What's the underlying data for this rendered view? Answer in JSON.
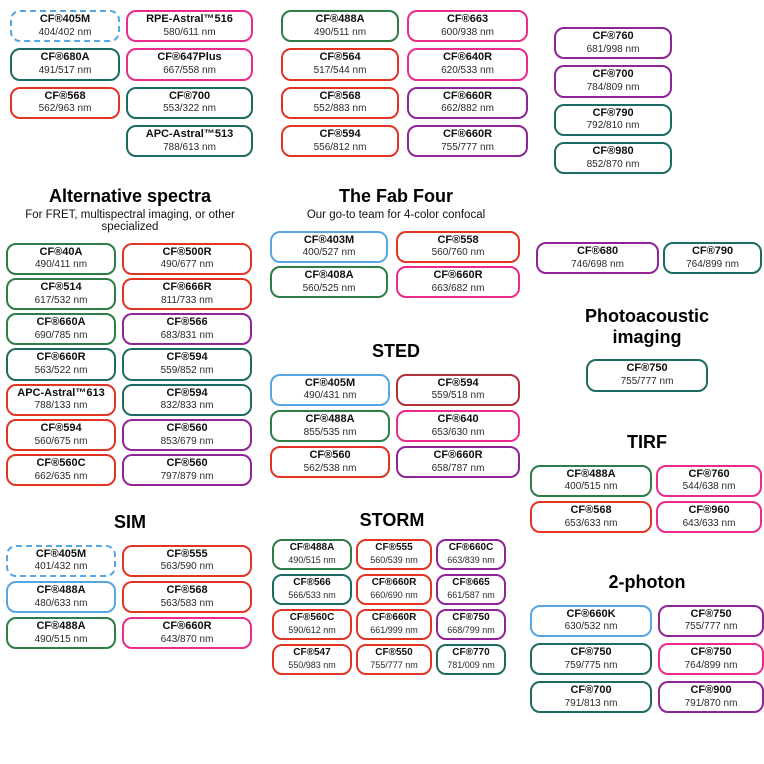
{
  "palette": {
    "blue": "#56a6e3",
    "teal": "#1d6b60",
    "green": "#2e7d46",
    "red": "#e23425",
    "pink": "#ea2b8b",
    "purple": "#8e2497",
    "darkred": "#ad3338"
  },
  "sections": [
    {
      "id": "top-a",
      "pills": [
        {
          "name": "CF®405M",
          "ex_em": "404/402 nm",
          "color": "blue",
          "border": "dashed"
        },
        {
          "name": "CF®680A",
          "ex_em": "491/517 nm",
          "color": "teal"
        },
        {
          "name": "CF®568",
          "ex_em": "562/963 nm",
          "color": "red"
        }
      ]
    },
    {
      "id": "top-b",
      "pills": [
        {
          "name": "RPE-Astral™516",
          "ex_em": "580/611 nm",
          "color": "pink"
        },
        {
          "name": "CF®647Plus",
          "ex_em": "667/558 nm",
          "color": "pink"
        },
        {
          "name": "CF®700",
          "ex_em": "553/322 nm",
          "color": "teal"
        },
        {
          "name": "APC-Astral™513",
          "ex_em": "788/613 nm",
          "color": "teal"
        }
      ]
    },
    {
      "id": "top-c",
      "pills": [
        {
          "name": "CF®488A",
          "ex_em": "490/511 nm",
          "color": "green"
        },
        {
          "name": "CF®564",
          "ex_em": "517/544 nm",
          "color": "red"
        },
        {
          "name": "CF®568",
          "ex_em": "552/883 nm",
          "color": "red"
        },
        {
          "name": "CF®594",
          "ex_em": "556/812 nm",
          "color": "red"
        }
      ]
    },
    {
      "id": "top-d",
      "pills": [
        {
          "name": "CF®663",
          "ex_em": "600/938 nm",
          "color": "pink"
        },
        {
          "name": "CF®640R",
          "ex_em": "620/533 nm",
          "color": "pink"
        },
        {
          "name": "CF®660R",
          "ex_em": "662/882 nm",
          "color": "purple"
        },
        {
          "name": "CF®660R",
          "ex_em": "755/777 nm",
          "color": "purple"
        }
      ]
    },
    {
      "id": "top-e",
      "pills": [
        {
          "name": "CF®760",
          "ex_em": "681/998 nm",
          "color": "purple"
        },
        {
          "name": "CF®700",
          "ex_em": "784/809 nm",
          "color": "purple"
        },
        {
          "name": "CF®790",
          "ex_em": "792/810 nm",
          "color": "teal"
        },
        {
          "name": "CF®980",
          "ex_em": "852/870 nm",
          "color": "teal"
        }
      ]
    },
    {
      "id": "alt",
      "title": "Alternative spectra",
      "subtitle": "For FRET, multispectral imaging, or other specialized",
      "pills": [
        {
          "name": "CF®40A",
          "ex_em": "490/411 nm",
          "color": "green"
        },
        {
          "name": "CF®500R",
          "ex_em": "490/677 nm",
          "color": "red"
        },
        {
          "name": "CF®514",
          "ex_em": "617/532 nm",
          "color": "green"
        },
        {
          "name": "CF®666R",
          "ex_em": "811/733 nm",
          "color": "red"
        },
        {
          "name": "CF®660A",
          "ex_em": "690/785 nm",
          "color": "green"
        },
        {
          "name": "CF®566",
          "ex_em": "683/831 nm",
          "color": "purple"
        },
        {
          "name": "CF®660R",
          "ex_em": "563/522 nm",
          "color": "teal"
        },
        {
          "name": "CF®594",
          "ex_em": "559/852 nm",
          "color": "teal"
        },
        {
          "name": "APC-Astral™613",
          "ex_em": "788/133 nm",
          "color": "red"
        },
        {
          "name": "CF®594",
          "ex_em": "832/833 nm",
          "color": "teal"
        },
        {
          "name": "CF®594",
          "ex_em": "560/675 nm",
          "color": "red"
        },
        {
          "name": "CF®560",
          "ex_em": "853/679 nm",
          "color": "purple"
        },
        {
          "name": "CF®560C",
          "ex_em": "662/635 nm",
          "color": "red"
        },
        {
          "name": "CF®560",
          "ex_em": "797/879 nm",
          "color": "purple"
        }
      ]
    },
    {
      "id": "fab",
      "title": "The Fab Four",
      "subtitle": "Our go-to team for 4-color confocal",
      "pills": [
        {
          "name": "CF®403M",
          "ex_em": "400/527 nm",
          "color": "blue"
        },
        {
          "name": "CF®558",
          "ex_em": "560/760 nm",
          "color": "red"
        },
        {
          "name": "CF®408A",
          "ex_em": "560/525 nm",
          "color": "green"
        },
        {
          "name": "CF®660R",
          "ex_em": "663/682 nm",
          "color": "pink"
        }
      ]
    },
    {
      "id": "sted",
      "title": "STED",
      "pills": [
        {
          "name": "CF®405M",
          "ex_em": "490/431 nm",
          "color": "blue"
        },
        {
          "name": "CF®594",
          "ex_em": "559/518 nm",
          "color": "darkred"
        },
        {
          "name": "CF®488A",
          "ex_em": "855/535 nm",
          "color": "green"
        },
        {
          "name": "CF®640",
          "ex_em": "653/630 nm",
          "color": "pink"
        },
        {
          "name": "CF®560",
          "ex_em": "562/538 nm",
          "color": "red"
        },
        {
          "name": "CF®660R",
          "ex_em": "658/787 nm",
          "color": "purple"
        }
      ]
    },
    {
      "id": "pair",
      "pills": [
        {
          "name": "CF®680",
          "ex_em": "746/698 nm",
          "color": "purple"
        },
        {
          "name": "CF®790",
          "ex_em": "764/899 nm",
          "color": "teal"
        }
      ]
    },
    {
      "id": "photo",
      "title_lines": [
        "Photoacoustic",
        "imaging"
      ],
      "pills": [
        {
          "name": "CF®750",
          "ex_em": "755/777 nm",
          "color": "teal"
        }
      ]
    },
    {
      "id": "tirf",
      "title": "TIRF",
      "pills": [
        {
          "name": "CF®488A",
          "ex_em": "400/515 nm",
          "color": "green"
        },
        {
          "name": "CF®760",
          "ex_em": "544/638 nm",
          "color": "pink"
        },
        {
          "name": "CF®568",
          "ex_em": "653/633 nm",
          "color": "red"
        },
        {
          "name": "CF®960",
          "ex_em": "643/633 nm",
          "color": "pink"
        }
      ]
    },
    {
      "id": "sim",
      "title": "SIM",
      "pills": [
        {
          "name": "CF®405M",
          "ex_em": "401/432 nm",
          "color": "blue",
          "border": "dashed"
        },
        {
          "name": "CF®555",
          "ex_em": "563/590 nm",
          "color": "red"
        },
        {
          "name": "CF®488A",
          "ex_em": "480/633 nm",
          "color": "blue"
        },
        {
          "name": "CF®568",
          "ex_em": "563/583 nm",
          "color": "red"
        },
        {
          "name": "CF®488A",
          "ex_em": "490/515 nm",
          "color": "green"
        },
        {
          "name": "CF®660R",
          "ex_em": "643/870 nm",
          "color": "pink"
        }
      ]
    },
    {
      "id": "storm",
      "title": "STORM",
      "pills": [
        {
          "name": "CF®488A",
          "ex_em": "490/515 nm",
          "color": "green"
        },
        {
          "name": "CF®555",
          "ex_em": "560/539 nm",
          "color": "red"
        },
        {
          "name": "CF®660C",
          "ex_em": "663/839 nm",
          "color": "purple"
        },
        {
          "name": "CF®566",
          "ex_em": "566/533 nm",
          "color": "teal"
        },
        {
          "name": "CF®660R",
          "ex_em": "660/690 nm",
          "color": "red"
        },
        {
          "name": "CF®665",
          "ex_em": "661/587 nm",
          "color": "purple"
        },
        {
          "name": "CF®560C",
          "ex_em": "590/612 nm",
          "color": "red"
        },
        {
          "name": "CF®660R",
          "ex_em": "661/999 nm",
          "color": "red"
        },
        {
          "name": "CF®750",
          "ex_em": "668/799 nm",
          "color": "purple"
        },
        {
          "name": "CF®547",
          "ex_em": "550/983 nm",
          "color": "red"
        },
        {
          "name": "CF®550",
          "ex_em": "755/777 nm",
          "color": "red"
        },
        {
          "name": "CF®770",
          "ex_em": "781/009 nm",
          "color": "teal"
        }
      ]
    },
    {
      "id": "twop",
      "title": "2-photon",
      "pills": [
        {
          "name": "CF®660K",
          "ex_em": "630/532 nm",
          "color": "blue"
        },
        {
          "name": "CF®750",
          "ex_em": "755/777 nm",
          "color": "purple"
        },
        {
          "name": "CF®750",
          "ex_em": "759/775 nm",
          "color": "teal"
        },
        {
          "name": "CF®750",
          "ex_em": "764/899 nm",
          "color": "pink"
        },
        {
          "name": "CF®700",
          "ex_em": "791/813 nm",
          "color": "teal"
        },
        {
          "name": "CF®900",
          "ex_em": "791/870 nm",
          "color": "purple"
        }
      ]
    }
  ]
}
